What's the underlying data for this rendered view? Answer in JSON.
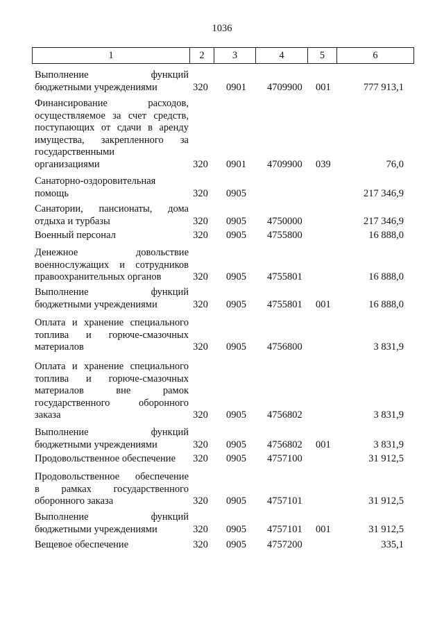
{
  "page_number": "1036",
  "header": [
    "1",
    "2",
    "3",
    "4",
    "5",
    "6"
  ],
  "rows": [
    {
      "desc": [
        "Выполнение функций",
        "бюджетными учреждениями"
      ],
      "c2": "320",
      "c3": "0901",
      "c4": "4709900",
      "c5": "001",
      "c6": "777 913,1"
    },
    {
      "desc": [
        "Финансирование расходов,",
        "осуществляемое за счет средств,",
        "поступающих от сдачи в аренду",
        "имущества, закрепленного за",
        "государственными",
        "организациями"
      ],
      "c2": "320",
      "c3": "0901",
      "c4": "4709900",
      "c5": "039",
      "c6": "76,0"
    },
    {
      "desc": [
        "Санаторно-оздоровительная",
        "помощь"
      ],
      "c2": "320",
      "c3": "0905",
      "c4": "",
      "c5": "",
      "c6": "217 346,9"
    },
    {
      "desc": [
        "Санатории, пансионаты, дома",
        "отдыха и турбазы"
      ],
      "c2": "320",
      "c3": "0905",
      "c4": "4750000",
      "c5": "",
      "c6": "217 346,9"
    },
    {
      "desc": [
        "Военный персонал"
      ],
      "c2": "320",
      "c3": "0905",
      "c4": "4755800",
      "c5": "",
      "c6": "16 888,0"
    },
    {
      "desc": [
        "Денежное довольствие",
        "военнослужащих и сотрудников",
        "правоохранительных органов"
      ],
      "c2": "320",
      "c3": "0905",
      "c4": "4755801",
      "c5": "",
      "c6": "16 888,0"
    },
    {
      "desc": [
        "Выполнение функций",
        "бюджетными учреждениями"
      ],
      "c2": "320",
      "c3": "0905",
      "c4": "4755801",
      "c5": "001",
      "c6": "16 888,0"
    },
    {
      "desc": [
        "Оплата и хранение специального",
        "топлива и горюче-смазочных",
        "материалов"
      ],
      "c2": "320",
      "c3": "0905",
      "c4": "4756800",
      "c5": "",
      "c6": "3 831,9"
    },
    {
      "desc": [
        "Оплата и хранение специального",
        "топлива и горюче-смазочных",
        "материалов вне рамок",
        "государственного оборонного",
        "заказа"
      ],
      "c2": "320",
      "c3": "0905",
      "c4": "4756802",
      "c5": "",
      "c6": "3 831,9"
    },
    {
      "desc": [
        "Выполнение функций",
        "бюджетными учреждениями"
      ],
      "c2": "320",
      "c3": "0905",
      "c4": "4756802",
      "c5": "001",
      "c6": "3 831,9"
    },
    {
      "desc": [
        "Продовольственное обеспечение"
      ],
      "c2": "320",
      "c3": "0905",
      "c4": "4757100",
      "c5": "",
      "c6": "31 912,5"
    },
    {
      "desc": [
        "Продовольственное обеспечение",
        "в рамках государственного",
        "оборонного заказа"
      ],
      "c2": "320",
      "c3": "0905",
      "c4": "4757101",
      "c5": "",
      "c6": "31 912,5"
    },
    {
      "desc": [
        "Выполнение функций",
        "бюджетными учреждениями"
      ],
      "c2": "320",
      "c3": "0905",
      "c4": "4757101",
      "c5": "001",
      "c6": "31 912,5"
    },
    {
      "desc": [
        "Вещевое обеспечение"
      ],
      "c2": "320",
      "c3": "0905",
      "c4": "4757200",
      "c5": "",
      "c6": "335,1"
    }
  ]
}
